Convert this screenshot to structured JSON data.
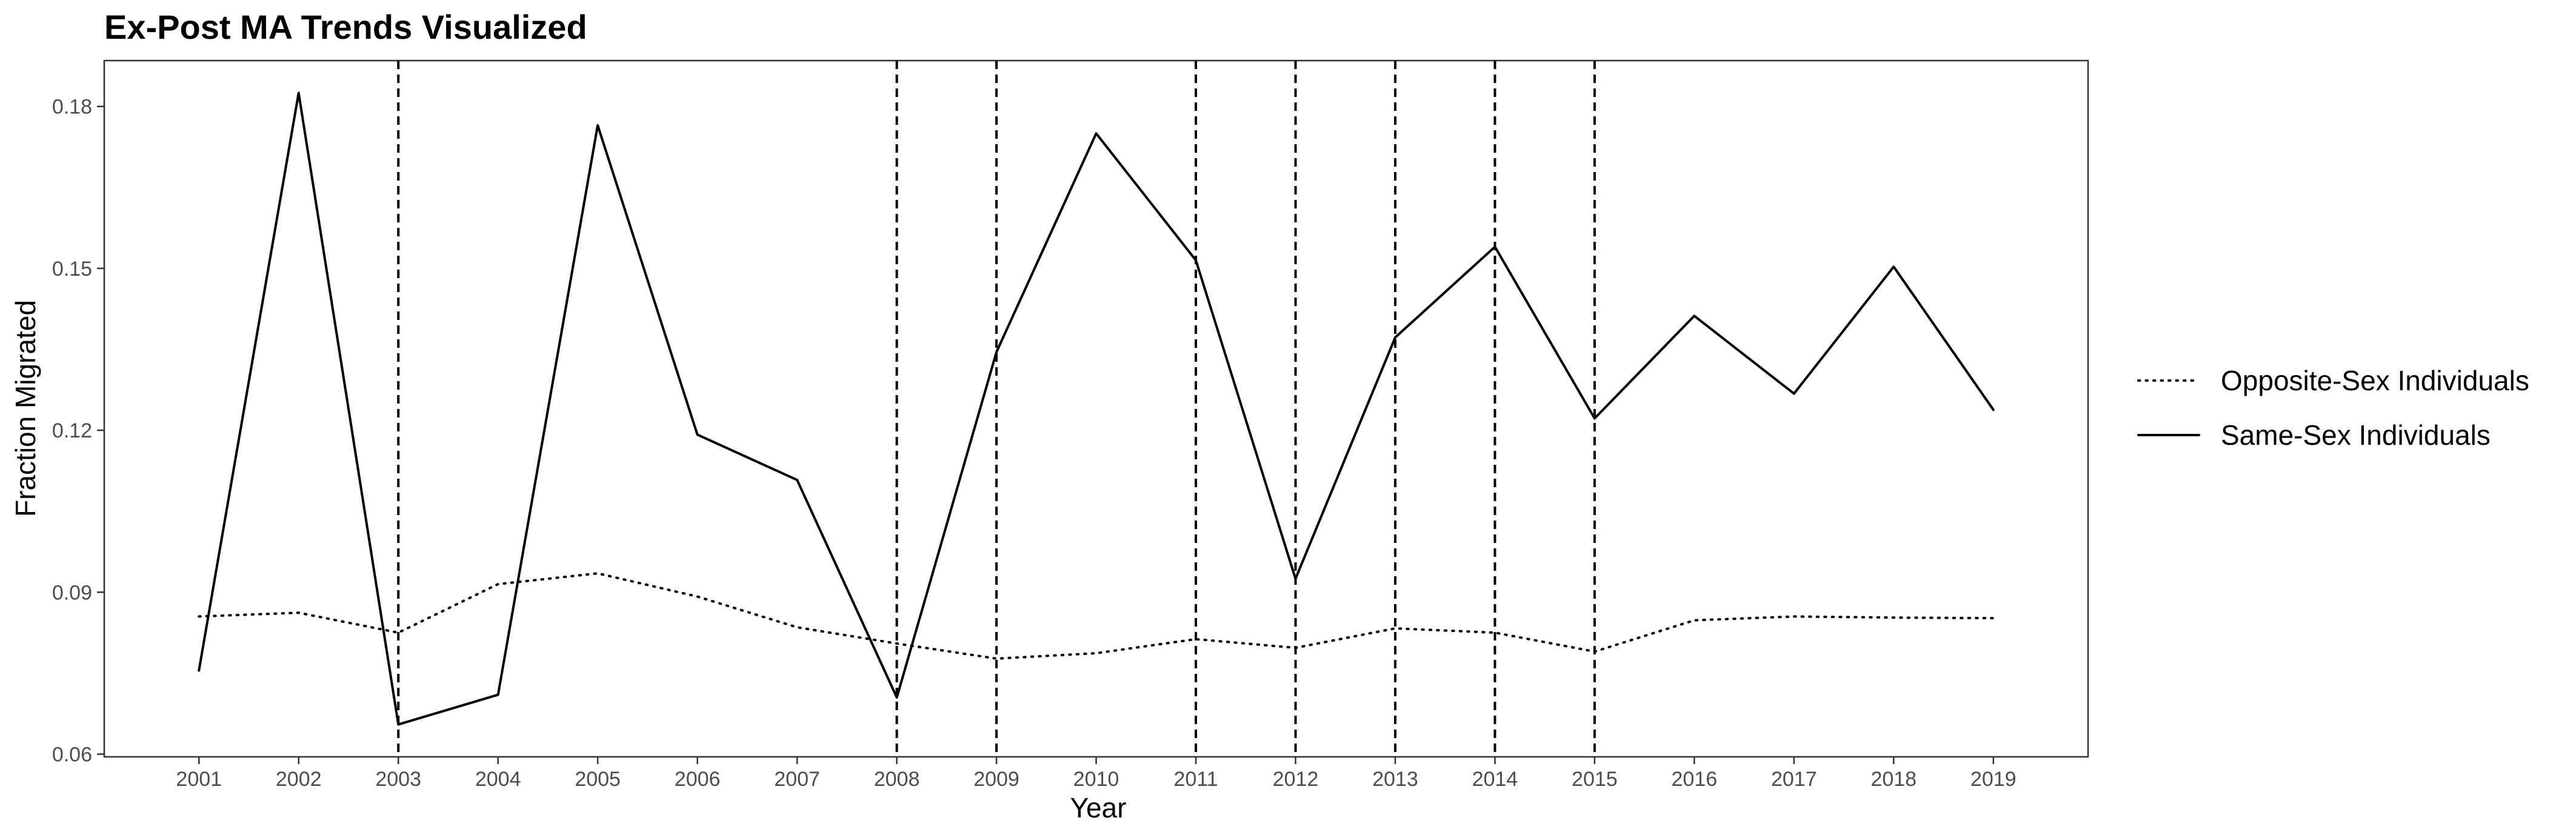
{
  "chart_data": {
    "type": "line",
    "title": "Ex-Post MA Trends Visualized",
    "xlabel": "Year",
    "ylabel": "Fraction Migrated",
    "x": [
      2001,
      2002,
      2003,
      2004,
      2005,
      2006,
      2007,
      2008,
      2009,
      2010,
      2011,
      2012,
      2013,
      2014,
      2015,
      2016,
      2017,
      2018,
      2019
    ],
    "x_tick_labels": [
      "2001",
      "2002",
      "2003",
      "2004",
      "2005",
      "2006",
      "2007",
      "2008",
      "2009",
      "2010",
      "2011",
      "2012",
      "2013",
      "2014",
      "2015",
      "2016",
      "2017",
      "2018",
      "2019"
    ],
    "y_ticks": [
      0.06,
      0.09,
      0.12,
      0.15,
      0.18
    ],
    "y_tick_labels": [
      "0.06",
      "0.09",
      "0.12",
      "0.15",
      "0.18"
    ],
    "xlim": [
      2000.05,
      2019.95
    ],
    "ylim": [
      0.0595,
      0.1885
    ],
    "grid": false,
    "legend_position": "right",
    "series": [
      {
        "name": "Opposite-Sex Individuals",
        "line_style": "dotted",
        "color": "#000000",
        "values": [
          0.0855,
          0.0862,
          0.0825,
          0.0915,
          0.0935,
          0.0892,
          0.0835,
          0.0805,
          0.0777,
          0.0787,
          0.0813,
          0.0797,
          0.0833,
          0.0825,
          0.079,
          0.0848,
          0.0855,
          0.0853,
          0.0852
        ]
      },
      {
        "name": "Same-Sex Individuals",
        "line_style": "solid",
        "color": "#000000",
        "values": [
          0.0755,
          0.1825,
          0.0655,
          0.071,
          0.1765,
          0.1192,
          0.1108,
          0.0705,
          0.1345,
          0.175,
          0.1515,
          0.0925,
          0.1372,
          0.154,
          0.1222,
          0.1412,
          0.1268,
          0.1503,
          0.1238
        ]
      }
    ],
    "vertical_reference_lines": {
      "line_style": "dashed",
      "x": [
        2003,
        2008,
        2009,
        2011,
        2012,
        2013,
        2014,
        2015
      ]
    }
  }
}
